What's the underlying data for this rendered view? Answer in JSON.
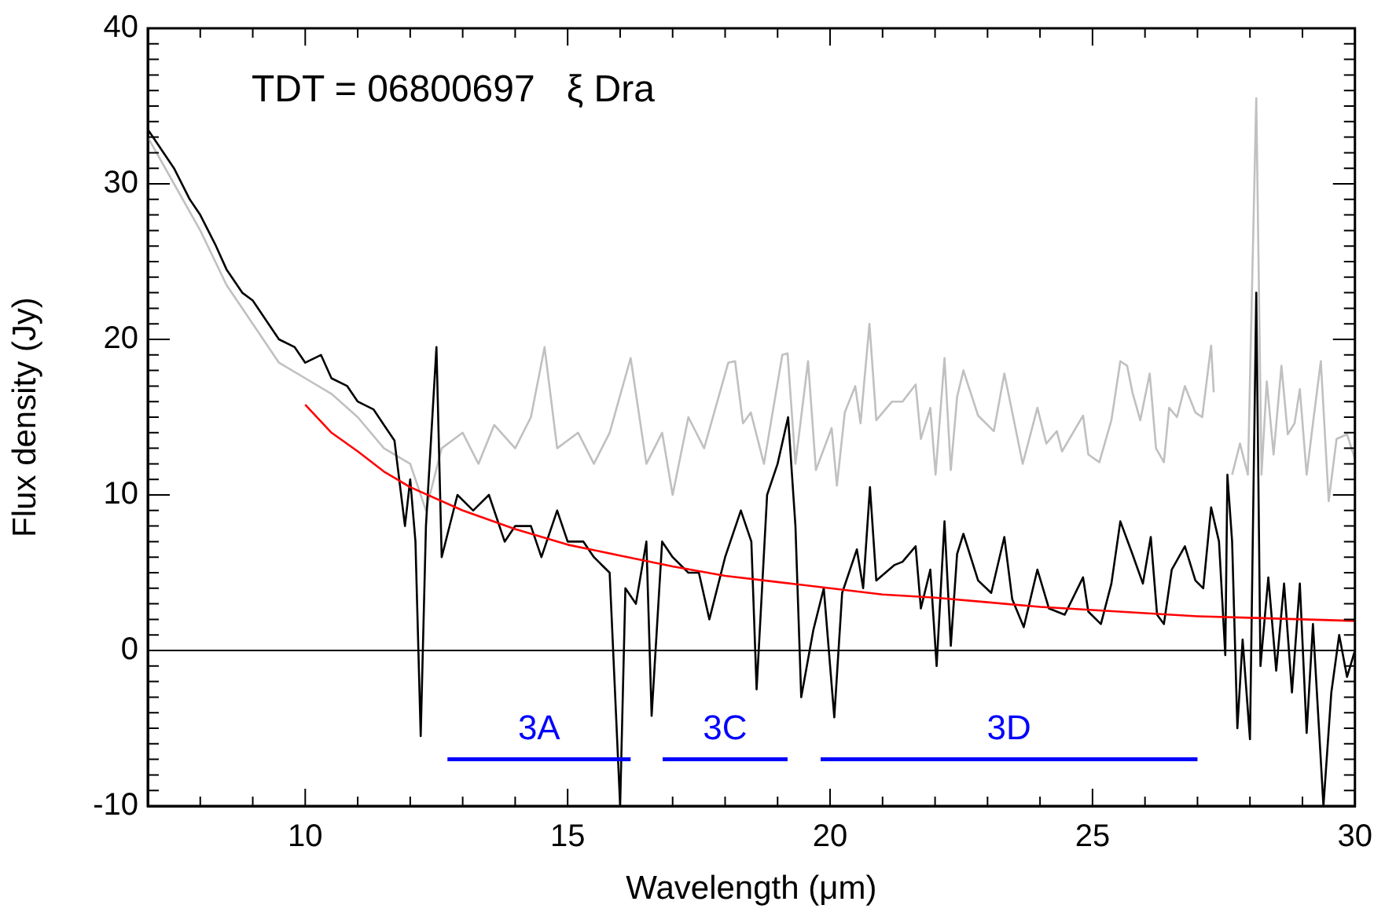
{
  "chart_data": {
    "type": "line",
    "title": "TDT = 06800697   ξ Dra",
    "xlabel": "Wavelength (μm)",
    "ylabel": "Flux density (Jy)",
    "xlim": [
      7,
      30
    ],
    "ylim": [
      -10,
      40
    ],
    "xticks": [
      {
        "value": 7,
        "label": null
      },
      {
        "value": 8,
        "label": null
      },
      {
        "value": 9,
        "label": null
      },
      10,
      {
        "value": 11,
        "label": null
      },
      {
        "value": 12,
        "label": null
      },
      {
        "value": 13,
        "label": null
      },
      {
        "value": 14,
        "label": null
      },
      15,
      {
        "value": 16,
        "label": null
      },
      {
        "value": 17,
        "label": null
      },
      {
        "value": 18,
        "label": null
      },
      {
        "value": 19,
        "label": null
      },
      20,
      {
        "value": 21,
        "label": null
      },
      {
        "value": 22,
        "label": null
      },
      {
        "value": 23,
        "label": null
      },
      {
        "value": 24,
        "label": null
      },
      25,
      {
        "value": 26,
        "label": null
      },
      {
        "value": 27,
        "label": null
      },
      {
        "value": 28,
        "label": null
      },
      {
        "value": 29,
        "label": null
      },
      30
    ],
    "yticks": [
      -10,
      {
        "value": -9,
        "label": null
      },
      {
        "value": -8,
        "label": null
      },
      {
        "value": -7,
        "label": null
      },
      {
        "value": -6,
        "label": null
      },
      {
        "value": -5,
        "label": null
      },
      {
        "value": -4,
        "label": null
      },
      {
        "value": -3,
        "label": null
      },
      {
        "value": -2,
        "label": null
      },
      {
        "value": -1,
        "label": null
      },
      0,
      {
        "value": 1,
        "label": null
      },
      {
        "value": 2,
        "label": null
      },
      {
        "value": 3,
        "label": null
      },
      {
        "value": 4,
        "label": null
      },
      {
        "value": 5,
        "label": null
      },
      {
        "value": 6,
        "label": null
      },
      {
        "value": 7,
        "label": null
      },
      {
        "value": 8,
        "label": null
      },
      {
        "value": 9,
        "label": null
      },
      10,
      {
        "value": 11,
        "label": null
      },
      {
        "value": 12,
        "label": null
      },
      {
        "value": 13,
        "label": null
      },
      {
        "value": 14,
        "label": null
      },
      {
        "value": 15,
        "label": null
      },
      {
        "value": 16,
        "label": null
      },
      {
        "value": 17,
        "label": null
      },
      {
        "value": 18,
        "label": null
      },
      {
        "value": 19,
        "label": null
      },
      20,
      {
        "value": 21,
        "label": null
      },
      {
        "value": 22,
        "label": null
      },
      {
        "value": 23,
        "label": null
      },
      {
        "value": 24,
        "label": null
      },
      {
        "value": 25,
        "label": null
      },
      {
        "value": 26,
        "label": null
      },
      {
        "value": 27,
        "label": null
      },
      {
        "value": 28,
        "label": null
      },
      {
        "value": 29,
        "label": null
      },
      30,
      {
        "value": 31,
        "label": null
      },
      {
        "value": 32,
        "label": null
      },
      {
        "value": 33,
        "label": null
      },
      {
        "value": 34,
        "label": null
      },
      {
        "value": 35,
        "label": null
      },
      {
        "value": 36,
        "label": null
      },
      {
        "value": 37,
        "label": null
      },
      {
        "value": 38,
        "label": null
      },
      {
        "value": 39,
        "label": null
      },
      40
    ],
    "ref_lines": [
      {
        "axis": "y",
        "value": 0,
        "color": "#000000"
      }
    ],
    "series": [
      {
        "color": "#c0c0c0",
        "x": [
          7,
          7.5,
          8,
          8.5,
          9,
          9.5,
          10,
          10.5,
          11,
          11.5,
          12,
          12.3,
          12.6,
          13,
          13.3,
          13.6,
          14,
          14.3,
          14.56,
          14.8,
          15.2,
          15.5,
          15.8,
          16.2,
          16.5,
          16.8,
          17,
          17.3,
          17.6,
          18.06,
          18.19,
          18.34,
          18.49,
          18.74,
          19.09,
          19.19,
          19.34,
          19.58,
          19.73,
          20.03,
          20.13,
          20.28,
          20.48,
          20.58,
          20.75,
          20.88,
          21.18,
          21.38,
          21.63,
          21.73,
          21.91,
          22.01,
          22.18,
          22.3,
          22.42,
          22.54,
          22.82,
          23.12,
          23.32,
          23.49,
          23.67,
          23.95,
          24.12,
          24.32,
          24.42,
          24.82,
          24.92,
          25.13,
          25.36,
          25.53,
          25.66,
          25.76,
          25.91,
          26.09,
          26.21,
          26.36,
          26.46,
          26.61,
          26.76,
          26.96,
          27.09,
          27.26,
          27.31,
          27.45,
          27.66,
          27.81,
          27.96,
          28.12,
          28.22,
          28.32,
          28.45,
          28.6,
          28.72,
          28.85,
          28.95,
          29.08,
          29.2,
          29.35,
          29.5,
          29.65,
          29.85,
          30
        ],
        "values": [
          33,
          30,
          27,
          23.5,
          21,
          18.5,
          17.5,
          16.5,
          15,
          13,
          12,
          9,
          13,
          14,
          12,
          14.5,
          13,
          15,
          19.5,
          13,
          14,
          12,
          14,
          18.8,
          12,
          14,
          10,
          15,
          13,
          18.5,
          18.6,
          14.6,
          15.3,
          12,
          19,
          19.1,
          12,
          18.6,
          11.6,
          14.3,
          10.6,
          15.3,
          17,
          14.6,
          21,
          14.8,
          16,
          16,
          17.1,
          13.6,
          15.6,
          11.3,
          18.8,
          11.6,
          16.3,
          18,
          15.1,
          14.1,
          17.8,
          15,
          12,
          15.6,
          13.3,
          14.1,
          12.8,
          15.1,
          12.6,
          12.1,
          14.8,
          18.6,
          18.3,
          16.6,
          14.8,
          17.8,
          13,
          12.1,
          15.6,
          15,
          17,
          15.3,
          15,
          19.6,
          16.6,
          null,
          11.3,
          13.3,
          11.3,
          35.5,
          11.3,
          17.3,
          12.6,
          18.3,
          13.9,
          14.6,
          16.8,
          11.3,
          14.6,
          18.6,
          9.6,
          13.6,
          13.9,
          12.3
        ]
      },
      {
        "color": "#000000",
        "x": [
          7,
          7.2,
          7.5,
          7.8,
          8,
          8.3,
          8.5,
          8.8,
          9,
          9.3,
          9.5,
          9.8,
          10,
          10.3,
          10.5,
          10.8,
          11,
          11.3,
          11.5,
          11.7,
          11.9,
          12,
          12.1,
          12.2,
          12.3,
          12.5,
          12.6,
          12.9,
          13.2,
          13.5,
          13.8,
          14,
          14.3,
          14.5,
          14.8,
          15,
          15.3,
          15.5,
          15.8,
          16,
          16.1,
          16.3,
          16.5,
          16.6,
          16.8,
          17,
          17.3,
          17.5,
          17.7,
          18,
          18.3,
          18.5,
          18.6,
          18.8,
          19,
          19.2,
          19.34,
          19.45,
          19.68,
          19.88,
          20.08,
          20.23,
          20.51,
          20.63,
          20.76,
          20.88,
          21.23,
          21.38,
          21.63,
          21.73,
          21.91,
          22.03,
          22.18,
          22.3,
          22.42,
          22.54,
          22.82,
          23.07,
          23.32,
          23.47,
          23.69,
          23.95,
          24.17,
          24.47,
          24.82,
          24.92,
          25.16,
          25.36,
          25.53,
          25.76,
          25.96,
          26.11,
          26.23,
          26.36,
          26.51,
          26.76,
          26.96,
          27.11,
          27.26,
          27.41,
          27.53,
          27.57,
          27.66,
          27.76,
          27.86,
          28,
          28.12,
          28.2,
          28.35,
          28.5,
          28.65,
          28.8,
          28.95,
          29.08,
          29.2,
          29.4,
          29.55,
          29.7,
          29.85,
          30
        ],
        "values": [
          33.5,
          32.5,
          31,
          29,
          28,
          26,
          24.5,
          23,
          22.5,
          21,
          20,
          19.5,
          18.5,
          19,
          17.5,
          17,
          16,
          15.5,
          14.5,
          13.5,
          8,
          11,
          7,
          -5.5,
          8,
          19.5,
          6,
          10,
          9,
          10,
          7,
          8,
          8,
          6,
          9,
          7,
          7,
          6,
          5,
          -10,
          4,
          3,
          7,
          -4.2,
          7,
          6,
          5,
          5,
          2,
          6,
          9,
          7,
          -2.5,
          10,
          12,
          15,
          8,
          -3,
          1.3,
          4,
          -4.3,
          3.7,
          6.5,
          4,
          10.5,
          4.5,
          5.5,
          5.7,
          6.7,
          2.7,
          5.2,
          -1,
          8.3,
          0.3,
          6.2,
          7.5,
          4.5,
          3.7,
          7.3,
          3.3,
          1.5,
          5.2,
          2.7,
          2.3,
          4.7,
          2.5,
          1.7,
          4.3,
          8.3,
          6.2,
          4.3,
          7.3,
          2.3,
          1.7,
          5.2,
          6.7,
          4.5,
          4,
          9.2,
          7,
          -0.3,
          11.3,
          7,
          -5,
          0.7,
          -5.7,
          23,
          -1,
          4.7,
          -1.3,
          4.3,
          -2.7,
          4.3,
          -5.3,
          1.7,
          -10,
          -2.7,
          1,
          -1.7,
          0
        ]
      },
      {
        "color": "#ff0000",
        "x": [
          10,
          10.5,
          11,
          11.5,
          12,
          13,
          14,
          15,
          16,
          17,
          18,
          19,
          20,
          21,
          22,
          23,
          24,
          25,
          26,
          27,
          28,
          29,
          30
        ],
        "values": [
          15.8,
          14,
          12.8,
          11.5,
          10.5,
          9,
          7.8,
          6.8,
          6.1,
          5.4,
          4.8,
          4.4,
          4,
          3.6,
          3.4,
          3.1,
          2.8,
          2.6,
          2.4,
          2.2,
          2.1,
          2,
          1.9
        ]
      },
      {
        "name": "3A",
        "color": "#0000ff",
        "x": [
          12.71,
          16.2
        ],
        "values": [
          -7,
          -7
        ]
      },
      {
        "name": "3C",
        "color": "#0000ff",
        "x": [
          16.81,
          19.19
        ],
        "values": [
          -7,
          -7
        ]
      },
      {
        "name": "3D",
        "color": "#0000ff",
        "x": [
          19.82,
          27
        ],
        "values": [
          -7,
          -7
        ]
      }
    ]
  }
}
